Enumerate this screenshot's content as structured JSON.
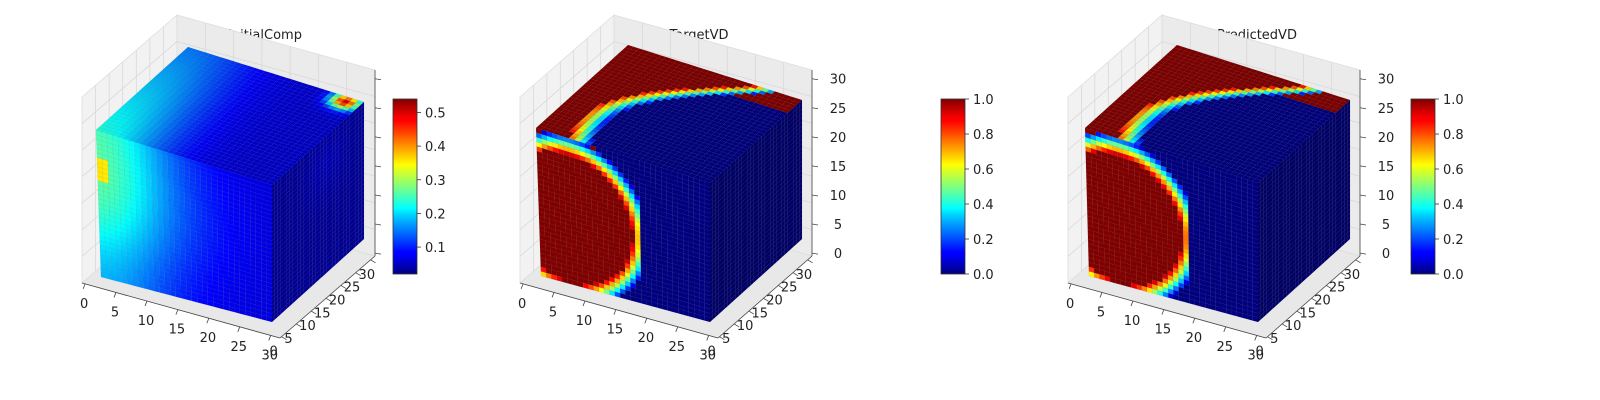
{
  "chart_data": [
    {
      "type": "heatmap",
      "subtype": "3d-voxel-cube",
      "title": "InitialComp",
      "x_ticks": [
        "0",
        "5",
        "10",
        "15",
        "20",
        "25",
        "30"
      ],
      "y_ticks": [
        "0",
        "5",
        "10",
        "15",
        "20",
        "25",
        "30"
      ],
      "z_ticks": [],
      "xlim": [
        0,
        32
      ],
      "ylim": [
        0,
        32
      ],
      "zlim": [
        0,
        32
      ],
      "colormap": "jet",
      "colorbar": {
        "min": 0.02,
        "max": 0.54,
        "ticks": [
          {
            "value": 0.1,
            "label": "0.1"
          },
          {
            "value": 0.2,
            "label": "0.2"
          },
          {
            "value": 0.3,
            "label": "0.3"
          },
          {
            "value": 0.4,
            "label": "0.4"
          },
          {
            "value": 0.5,
            "label": "0.5"
          }
        ]
      },
      "field": "diffuse",
      "front_face_value": 0.22,
      "right_face_value": 0.03,
      "top_face_value": 0.08,
      "grid": true
    },
    {
      "type": "heatmap",
      "subtype": "3d-voxel-cube",
      "title": "TargetVD",
      "x_ticks": [
        "0",
        "5",
        "10",
        "15",
        "20",
        "25",
        "30"
      ],
      "y_ticks": [
        "0",
        "5",
        "10",
        "15",
        "20",
        "25",
        "30"
      ],
      "z_ticks": [
        "0",
        "5",
        "10",
        "15",
        "20",
        "25",
        "30"
      ],
      "xlim": [
        0,
        32
      ],
      "ylim": [
        0,
        32
      ],
      "zlim": [
        0,
        32
      ],
      "colormap": "jet",
      "colorbar": {
        "min": 0.0,
        "max": 1.0,
        "ticks": [
          {
            "value": 0.0,
            "label": "0.0"
          },
          {
            "value": 0.2,
            "label": "0.2"
          },
          {
            "value": 0.4,
            "label": "0.4"
          },
          {
            "value": 0.6,
            "label": "0.6"
          },
          {
            "value": 0.8,
            "label": "0.8"
          },
          {
            "value": 1.0,
            "label": "1.0"
          }
        ]
      },
      "field": "interface",
      "inside_value": 1.0,
      "outside_value": 0.0,
      "grid": true
    },
    {
      "type": "heatmap",
      "subtype": "3d-voxel-cube",
      "title": "PredictedVD",
      "x_ticks": [
        "0",
        "5",
        "10",
        "15",
        "20",
        "25",
        "30"
      ],
      "y_ticks": [
        "0",
        "5",
        "10",
        "15",
        "20",
        "25",
        "30"
      ],
      "z_ticks": [
        "0",
        "5",
        "10",
        "15",
        "20",
        "25",
        "30"
      ],
      "xlim": [
        0,
        32
      ],
      "ylim": [
        0,
        32
      ],
      "zlim": [
        0,
        32
      ],
      "colormap": "jet",
      "colorbar": {
        "min": 0.0,
        "max": 1.0,
        "ticks": [
          {
            "value": 0.0,
            "label": "0.0"
          },
          {
            "value": 0.2,
            "label": "0.2"
          },
          {
            "value": 0.4,
            "label": "0.4"
          },
          {
            "value": 0.6,
            "label": "0.6"
          },
          {
            "value": 0.8,
            "label": "0.8"
          },
          {
            "value": 1.0,
            "label": "1.0"
          }
        ]
      },
      "field": "interface",
      "inside_value": 1.0,
      "outside_value": 0.0,
      "grid": true
    }
  ]
}
